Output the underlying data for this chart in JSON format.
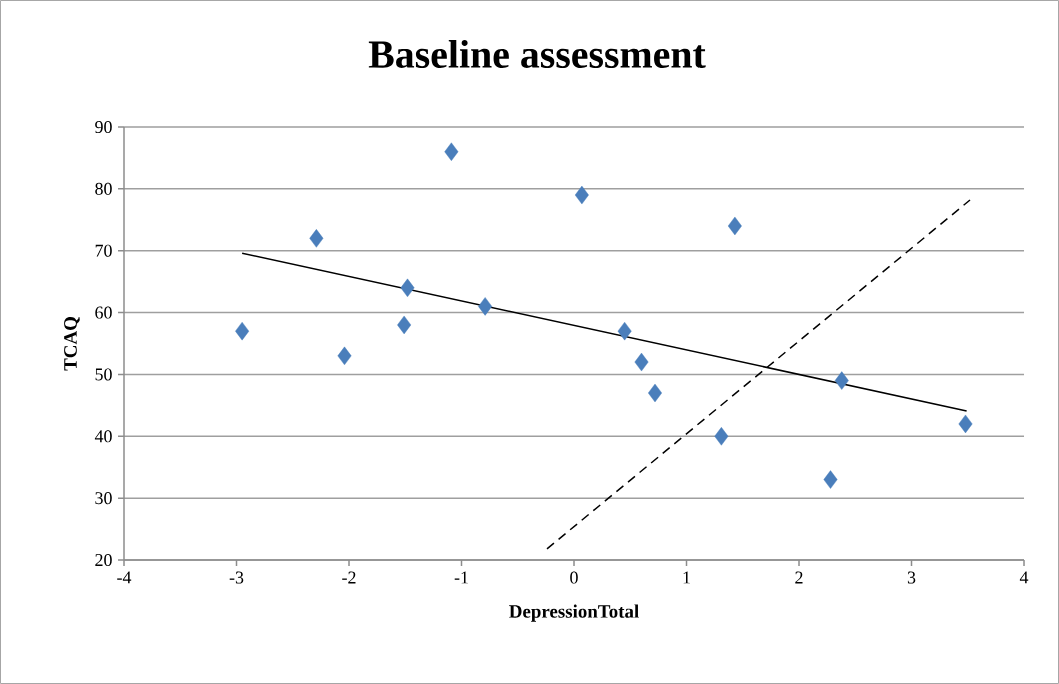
{
  "chart_data": {
    "type": "scatter",
    "title": "Baseline assessment",
    "xlabel": "DepressionTotal",
    "ylabel": "TCAQ",
    "xlim": [
      -4,
      4
    ],
    "xticks": [
      -4,
      -3,
      -2,
      -1,
      0,
      1,
      2,
      3,
      4
    ],
    "ylim": [
      20,
      90
    ],
    "yticks": [
      20,
      30,
      40,
      50,
      60,
      70,
      80,
      90
    ],
    "grid": "y",
    "series": [
      {
        "marker": "diamond",
        "color": "#4a7ebb",
        "x": [
          -2.95,
          -2.29,
          -2.04,
          -1.48,
          -1.51,
          -1.09,
          -0.79,
          0.07,
          0.45,
          0.6,
          0.72,
          1.31,
          1.43,
          2.28,
          2.38,
          3.48
        ],
        "values": [
          57,
          72,
          53,
          64,
          58,
          86,
          61,
          79,
          57,
          52,
          47,
          40,
          74,
          33,
          49,
          42
        ]
      },
      {
        "type": "line",
        "line_style": "solid",
        "color": "#000000",
        "x": [
          -2.95,
          3.49
        ],
        "values": [
          69.6,
          44.1
        ]
      },
      {
        "type": "line",
        "line_style": "dashed",
        "color": "#000000",
        "x": [
          -0.24,
          3.52
        ],
        "values": [
          21.8,
          78.2
        ]
      }
    ]
  }
}
